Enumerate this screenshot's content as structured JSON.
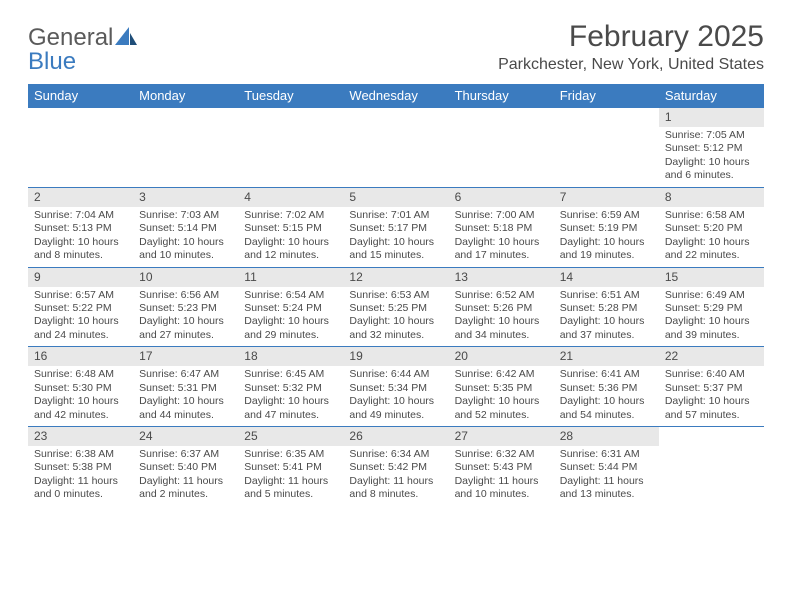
{
  "logo": {
    "word1": "General",
    "word2": "Blue"
  },
  "title": "February 2025",
  "location": "Parkchester, New York, United States",
  "colors": {
    "header_bg": "#3b7bbf",
    "header_text": "#ffffff",
    "date_bar_bg": "#e8e8e8",
    "text": "#4a4a4a",
    "rule": "#3b7bbf",
    "logo_gray": "#5a5a5a",
    "logo_blue": "#3b7bbf"
  },
  "day_names": [
    "Sunday",
    "Monday",
    "Tuesday",
    "Wednesday",
    "Thursday",
    "Friday",
    "Saturday"
  ],
  "weeks": [
    [
      {
        "empty": true
      },
      {
        "empty": true
      },
      {
        "empty": true
      },
      {
        "empty": true
      },
      {
        "empty": true
      },
      {
        "empty": true
      },
      {
        "date": "1",
        "sunrise": "Sunrise: 7:05 AM",
        "sunset": "Sunset: 5:12 PM",
        "daylight": "Daylight: 10 hours and 6 minutes."
      }
    ],
    [
      {
        "date": "2",
        "sunrise": "Sunrise: 7:04 AM",
        "sunset": "Sunset: 5:13 PM",
        "daylight": "Daylight: 10 hours and 8 minutes."
      },
      {
        "date": "3",
        "sunrise": "Sunrise: 7:03 AM",
        "sunset": "Sunset: 5:14 PM",
        "daylight": "Daylight: 10 hours and 10 minutes."
      },
      {
        "date": "4",
        "sunrise": "Sunrise: 7:02 AM",
        "sunset": "Sunset: 5:15 PM",
        "daylight": "Daylight: 10 hours and 12 minutes."
      },
      {
        "date": "5",
        "sunrise": "Sunrise: 7:01 AM",
        "sunset": "Sunset: 5:17 PM",
        "daylight": "Daylight: 10 hours and 15 minutes."
      },
      {
        "date": "6",
        "sunrise": "Sunrise: 7:00 AM",
        "sunset": "Sunset: 5:18 PM",
        "daylight": "Daylight: 10 hours and 17 minutes."
      },
      {
        "date": "7",
        "sunrise": "Sunrise: 6:59 AM",
        "sunset": "Sunset: 5:19 PM",
        "daylight": "Daylight: 10 hours and 19 minutes."
      },
      {
        "date": "8",
        "sunrise": "Sunrise: 6:58 AM",
        "sunset": "Sunset: 5:20 PM",
        "daylight": "Daylight: 10 hours and 22 minutes."
      }
    ],
    [
      {
        "date": "9",
        "sunrise": "Sunrise: 6:57 AM",
        "sunset": "Sunset: 5:22 PM",
        "daylight": "Daylight: 10 hours and 24 minutes."
      },
      {
        "date": "10",
        "sunrise": "Sunrise: 6:56 AM",
        "sunset": "Sunset: 5:23 PM",
        "daylight": "Daylight: 10 hours and 27 minutes."
      },
      {
        "date": "11",
        "sunrise": "Sunrise: 6:54 AM",
        "sunset": "Sunset: 5:24 PM",
        "daylight": "Daylight: 10 hours and 29 minutes."
      },
      {
        "date": "12",
        "sunrise": "Sunrise: 6:53 AM",
        "sunset": "Sunset: 5:25 PM",
        "daylight": "Daylight: 10 hours and 32 minutes."
      },
      {
        "date": "13",
        "sunrise": "Sunrise: 6:52 AM",
        "sunset": "Sunset: 5:26 PM",
        "daylight": "Daylight: 10 hours and 34 minutes."
      },
      {
        "date": "14",
        "sunrise": "Sunrise: 6:51 AM",
        "sunset": "Sunset: 5:28 PM",
        "daylight": "Daylight: 10 hours and 37 minutes."
      },
      {
        "date": "15",
        "sunrise": "Sunrise: 6:49 AM",
        "sunset": "Sunset: 5:29 PM",
        "daylight": "Daylight: 10 hours and 39 minutes."
      }
    ],
    [
      {
        "date": "16",
        "sunrise": "Sunrise: 6:48 AM",
        "sunset": "Sunset: 5:30 PM",
        "daylight": "Daylight: 10 hours and 42 minutes."
      },
      {
        "date": "17",
        "sunrise": "Sunrise: 6:47 AM",
        "sunset": "Sunset: 5:31 PM",
        "daylight": "Daylight: 10 hours and 44 minutes."
      },
      {
        "date": "18",
        "sunrise": "Sunrise: 6:45 AM",
        "sunset": "Sunset: 5:32 PM",
        "daylight": "Daylight: 10 hours and 47 minutes."
      },
      {
        "date": "19",
        "sunrise": "Sunrise: 6:44 AM",
        "sunset": "Sunset: 5:34 PM",
        "daylight": "Daylight: 10 hours and 49 minutes."
      },
      {
        "date": "20",
        "sunrise": "Sunrise: 6:42 AM",
        "sunset": "Sunset: 5:35 PM",
        "daylight": "Daylight: 10 hours and 52 minutes."
      },
      {
        "date": "21",
        "sunrise": "Sunrise: 6:41 AM",
        "sunset": "Sunset: 5:36 PM",
        "daylight": "Daylight: 10 hours and 54 minutes."
      },
      {
        "date": "22",
        "sunrise": "Sunrise: 6:40 AM",
        "sunset": "Sunset: 5:37 PM",
        "daylight": "Daylight: 10 hours and 57 minutes."
      }
    ],
    [
      {
        "date": "23",
        "sunrise": "Sunrise: 6:38 AM",
        "sunset": "Sunset: 5:38 PM",
        "daylight": "Daylight: 11 hours and 0 minutes."
      },
      {
        "date": "24",
        "sunrise": "Sunrise: 6:37 AM",
        "sunset": "Sunset: 5:40 PM",
        "daylight": "Daylight: 11 hours and 2 minutes."
      },
      {
        "date": "25",
        "sunrise": "Sunrise: 6:35 AM",
        "sunset": "Sunset: 5:41 PM",
        "daylight": "Daylight: 11 hours and 5 minutes."
      },
      {
        "date": "26",
        "sunrise": "Sunrise: 6:34 AM",
        "sunset": "Sunset: 5:42 PM",
        "daylight": "Daylight: 11 hours and 8 minutes."
      },
      {
        "date": "27",
        "sunrise": "Sunrise: 6:32 AM",
        "sunset": "Sunset: 5:43 PM",
        "daylight": "Daylight: 11 hours and 10 minutes."
      },
      {
        "date": "28",
        "sunrise": "Sunrise: 6:31 AM",
        "sunset": "Sunset: 5:44 PM",
        "daylight": "Daylight: 11 hours and 13 minutes."
      },
      {
        "empty": true
      }
    ]
  ]
}
